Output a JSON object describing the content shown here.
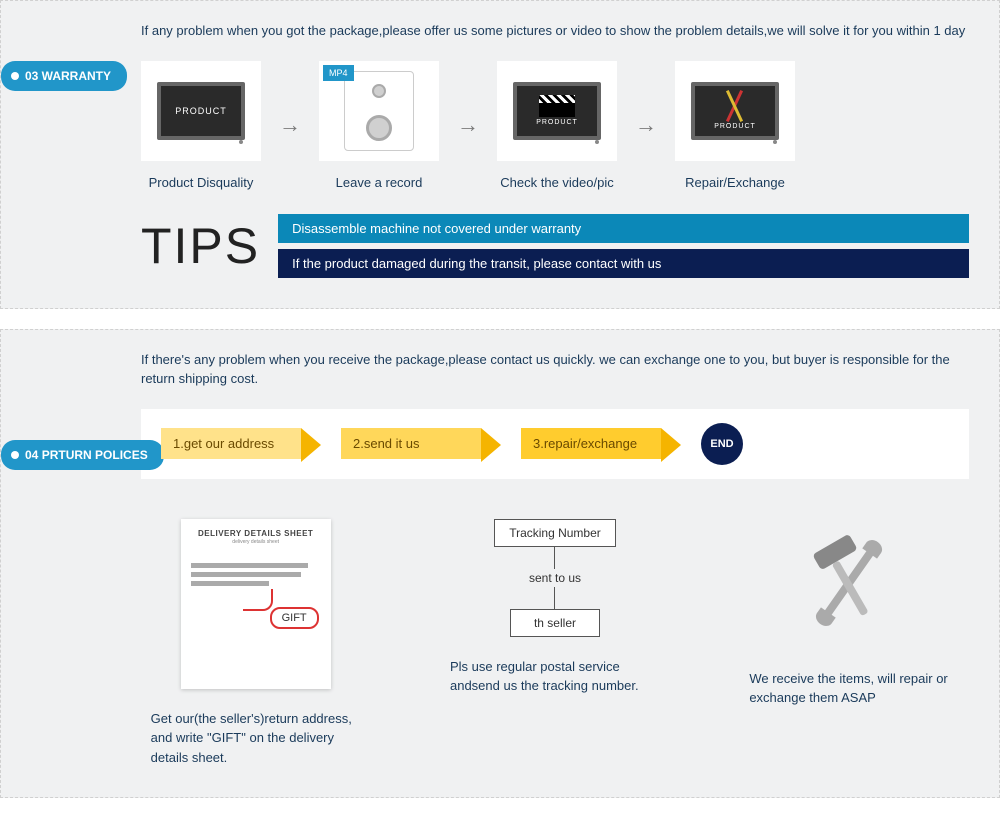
{
  "colors": {
    "page_bg": "#ffffff",
    "section_bg": "#f0f1f2",
    "section_border": "#d0d0d0",
    "tag_bg": "#2196c9",
    "tag_text": "#ffffff",
    "text_primary": "#1a3a5a",
    "tip_bar1_bg": "#0b88b8",
    "tip_bar2_bg": "#0b1e52",
    "step1_bg": "#ffe28a",
    "step2_bg": "#ffd75a",
    "step3_bg": "#ffcc2e",
    "step_chevron": "#f5b400",
    "end_circle_bg": "#0b1e52",
    "gift_border": "#d33"
  },
  "warranty": {
    "tag": "03 WARRANTY",
    "intro": "If any problem when you got the package,please offer us some pictures or video to show the problem details,we will solve it for you within 1 day",
    "steps": [
      {
        "label": "Product Disquality",
        "product_text": "PRODUCT"
      },
      {
        "label": "Leave a record",
        "badge": "MP4"
      },
      {
        "label": "Check the video/pic",
        "product_text": "PRODUCT"
      },
      {
        "label": "Repair/Exchange",
        "product_text": "PRODUCT"
      }
    ],
    "tips_title": "TIPS",
    "tips": [
      "Disassemble machine not covered under warranty",
      "If the product damaged during the transit, please contact with us"
    ]
  },
  "return": {
    "tag_line1": "04",
    "tag_line2": "PRTURN POLICES",
    "intro": "If  there's any problem when you receive the package,please contact us quickly. we can exchange one to you, but buyer is responsible for the return shipping cost.",
    "steps": [
      "1.get our address",
      "2.send it us",
      "3.repair/exchange"
    ],
    "end_label": "END",
    "details": {
      "sheet": {
        "title": "DELIVERY DETAILS SHEET",
        "gift": "GIFT",
        "caption": "Get our(the seller's)return address, and write \"GIFT\" on the delivery details sheet."
      },
      "tracking": {
        "box1": "Tracking Number",
        "mid_label": "sent to us",
        "box2": "th seller",
        "caption": "Pls use regular postal service andsend us the tracking number."
      },
      "tools": {
        "caption": "We receive the items, will repair or exchange them ASAP"
      }
    }
  }
}
